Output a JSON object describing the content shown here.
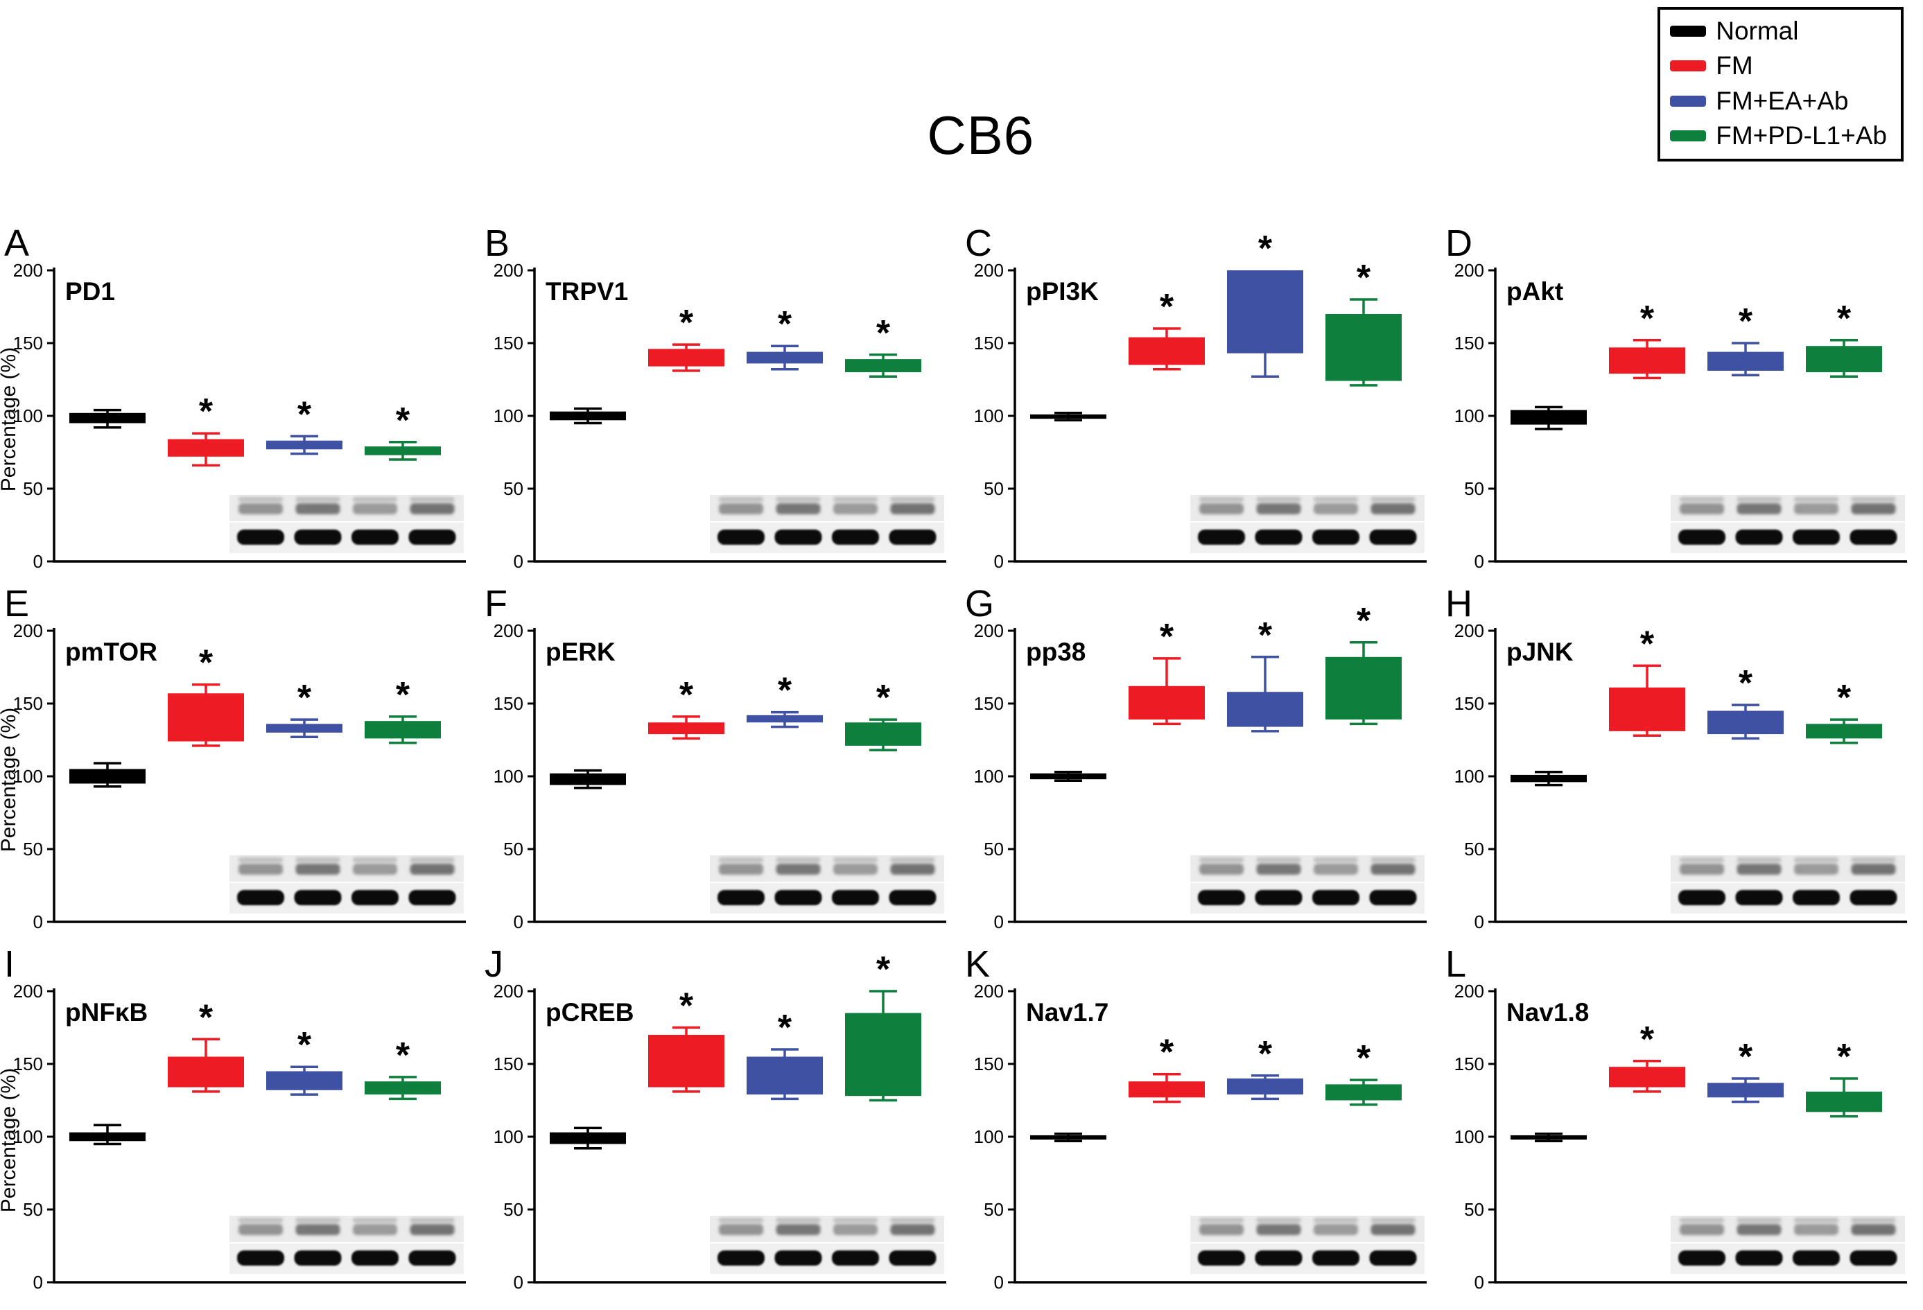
{
  "figure": {
    "title": "CB6"
  },
  "legend": {
    "items": [
      {
        "label": "Normal",
        "color": "#000000"
      },
      {
        "label": "FM",
        "color": "#ed1c24"
      },
      {
        "label": "FM+EA+Ab",
        "color": "#3f51a3"
      },
      {
        "label": "FM+PD-L1+Ab",
        "color": "#0e7f3c"
      }
    ]
  },
  "axis": {
    "ylabel": "Percentage (%)",
    "ylim": [
      0,
      200
    ],
    "yticks": [
      0,
      50,
      100,
      150,
      200
    ]
  },
  "blot": {
    "rows": 2,
    "lanes": 4
  },
  "chart_data": [
    {
      "panel": "A",
      "title": "PD1",
      "type": "bar",
      "show_ylabel": true,
      "blot": true,
      "groups": [
        "Normal",
        "FM",
        "FM+EA+Ab",
        "FM+PD-L1+Ab"
      ],
      "bars": [
        {
          "group": "Normal",
          "box": [
            95,
            102
          ],
          "whiskers": [
            92,
            104
          ],
          "sig": false
        },
        {
          "group": "FM",
          "box": [
            72,
            84
          ],
          "whiskers": [
            66,
            88
          ],
          "sig": true
        },
        {
          "group": "FM+EA+Ab",
          "box": [
            77,
            83
          ],
          "whiskers": [
            74,
            86
          ],
          "sig": true
        },
        {
          "group": "FM+PD-L1+Ab",
          "box": [
            73,
            79
          ],
          "whiskers": [
            70,
            82
          ],
          "sig": true
        }
      ]
    },
    {
      "panel": "B",
      "title": "TRPV1",
      "type": "bar",
      "show_ylabel": false,
      "blot": true,
      "groups": [
        "Normal",
        "FM",
        "FM+EA+Ab",
        "FM+PD-L1+Ab"
      ],
      "bars": [
        {
          "group": "Normal",
          "box": [
            97,
            103
          ],
          "whiskers": [
            95,
            105
          ],
          "sig": false
        },
        {
          "group": "FM",
          "box": [
            134,
            146
          ],
          "whiskers": [
            131,
            149
          ],
          "sig": true
        },
        {
          "group": "FM+EA+Ab",
          "box": [
            136,
            144
          ],
          "whiskers": [
            132,
            148
          ],
          "sig": true
        },
        {
          "group": "FM+PD-L1+Ab",
          "box": [
            130,
            139
          ],
          "whiskers": [
            127,
            142
          ],
          "sig": true
        }
      ]
    },
    {
      "panel": "C",
      "title": "pPI3K",
      "type": "bar",
      "show_ylabel": false,
      "blot": true,
      "groups": [
        "Normal",
        "FM",
        "FM+EA+Ab",
        "FM+PD-L1+Ab"
      ],
      "bars": [
        {
          "group": "Normal",
          "box": [
            98,
            101
          ],
          "whiskers": [
            97,
            102
          ],
          "sig": false
        },
        {
          "group": "FM",
          "box": [
            135,
            154
          ],
          "whiskers": [
            132,
            160
          ],
          "sig": true
        },
        {
          "group": "FM+EA+Ab",
          "box": [
            143,
            200
          ],
          "whiskers": [
            127,
            200
          ],
          "sig": true
        },
        {
          "group": "FM+PD-L1+Ab",
          "box": [
            124,
            170
          ],
          "whiskers": [
            121,
            180
          ],
          "sig": true
        }
      ]
    },
    {
      "panel": "D",
      "title": "pAkt",
      "type": "bar",
      "show_ylabel": false,
      "blot": true,
      "groups": [
        "Normal",
        "FM",
        "FM+EA+Ab",
        "FM+PD-L1+Ab"
      ],
      "bars": [
        {
          "group": "Normal",
          "box": [
            94,
            104
          ],
          "whiskers": [
            91,
            106
          ],
          "sig": false
        },
        {
          "group": "FM",
          "box": [
            129,
            147
          ],
          "whiskers": [
            126,
            152
          ],
          "sig": true
        },
        {
          "group": "FM+EA+Ab",
          "box": [
            131,
            144
          ],
          "whiskers": [
            128,
            150
          ],
          "sig": true
        },
        {
          "group": "FM+PD-L1+Ab",
          "box": [
            130,
            148
          ],
          "whiskers": [
            127,
            152
          ],
          "sig": true
        }
      ]
    },
    {
      "panel": "E",
      "title": "pmTOR",
      "type": "bar",
      "show_ylabel": true,
      "blot": true,
      "groups": [
        "Normal",
        "FM",
        "FM+EA+Ab",
        "FM+PD-L1+Ab"
      ],
      "bars": [
        {
          "group": "Normal",
          "box": [
            95,
            105
          ],
          "whiskers": [
            93,
            109
          ],
          "sig": false
        },
        {
          "group": "FM",
          "box": [
            124,
            157
          ],
          "whiskers": [
            121,
            163
          ],
          "sig": true
        },
        {
          "group": "FM+EA+Ab",
          "box": [
            130,
            136
          ],
          "whiskers": [
            127,
            139
          ],
          "sig": true
        },
        {
          "group": "FM+PD-L1+Ab",
          "box": [
            126,
            138
          ],
          "whiskers": [
            123,
            141
          ],
          "sig": true
        }
      ]
    },
    {
      "panel": "F",
      "title": "pERK",
      "type": "bar",
      "show_ylabel": false,
      "blot": true,
      "groups": [
        "Normal",
        "FM",
        "FM+EA+Ab",
        "FM+PD-L1+Ab"
      ],
      "bars": [
        {
          "group": "Normal",
          "box": [
            94,
            102
          ],
          "whiskers": [
            92,
            104
          ],
          "sig": false
        },
        {
          "group": "FM",
          "box": [
            129,
            137
          ],
          "whiskers": [
            126,
            141
          ],
          "sig": true
        },
        {
          "group": "FM+EA+Ab",
          "box": [
            137,
            142
          ],
          "whiskers": [
            134,
            144
          ],
          "sig": true
        },
        {
          "group": "FM+PD-L1+Ab",
          "box": [
            121,
            137
          ],
          "whiskers": [
            118,
            139
          ],
          "sig": true
        }
      ]
    },
    {
      "panel": "G",
      "title": "pp38",
      "type": "bar",
      "show_ylabel": false,
      "blot": true,
      "groups": [
        "Normal",
        "FM",
        "FM+EA+Ab",
        "FM+PD-L1+Ab"
      ],
      "bars": [
        {
          "group": "Normal",
          "box": [
            98,
            102
          ],
          "whiskers": [
            97,
            103
          ],
          "sig": false
        },
        {
          "group": "FM",
          "box": [
            139,
            162
          ],
          "whiskers": [
            136,
            181
          ],
          "sig": true
        },
        {
          "group": "FM+EA+Ab",
          "box": [
            134,
            158
          ],
          "whiskers": [
            131,
            182
          ],
          "sig": true
        },
        {
          "group": "FM+PD-L1+Ab",
          "box": [
            139,
            182
          ],
          "whiskers": [
            136,
            192
          ],
          "sig": true
        }
      ]
    },
    {
      "panel": "H",
      "title": "pJNK",
      "type": "bar",
      "show_ylabel": false,
      "blot": true,
      "groups": [
        "Normal",
        "FM",
        "FM+EA+Ab",
        "FM+PD-L1+Ab"
      ],
      "bars": [
        {
          "group": "Normal",
          "box": [
            96,
            101
          ],
          "whiskers": [
            94,
            103
          ],
          "sig": false
        },
        {
          "group": "FM",
          "box": [
            131,
            161
          ],
          "whiskers": [
            128,
            176
          ],
          "sig": true
        },
        {
          "group": "FM+EA+Ab",
          "box": [
            129,
            145
          ],
          "whiskers": [
            126,
            149
          ],
          "sig": true
        },
        {
          "group": "FM+PD-L1+Ab",
          "box": [
            126,
            136
          ],
          "whiskers": [
            123,
            139
          ],
          "sig": true
        }
      ]
    },
    {
      "panel": "I",
      "title": "pNFκB",
      "type": "bar",
      "show_ylabel": true,
      "blot": true,
      "groups": [
        "Normal",
        "FM",
        "FM+EA+Ab",
        "FM+PD-L1+Ab"
      ],
      "bars": [
        {
          "group": "Normal",
          "box": [
            97,
            103
          ],
          "whiskers": [
            95,
            108
          ],
          "sig": false
        },
        {
          "group": "FM",
          "box": [
            134,
            155
          ],
          "whiskers": [
            131,
            167
          ],
          "sig": true
        },
        {
          "group": "FM+EA+Ab",
          "box": [
            132,
            145
          ],
          "whiskers": [
            129,
            148
          ],
          "sig": true
        },
        {
          "group": "FM+PD-L1+Ab",
          "box": [
            129,
            138
          ],
          "whiskers": [
            126,
            141
          ],
          "sig": true
        }
      ]
    },
    {
      "panel": "J",
      "title": "pCREB",
      "type": "bar",
      "show_ylabel": false,
      "blot": true,
      "groups": [
        "Normal",
        "FM",
        "FM+EA+Ab",
        "FM+PD-L1+Ab"
      ],
      "bars": [
        {
          "group": "Normal",
          "box": [
            95,
            103
          ],
          "whiskers": [
            92,
            106
          ],
          "sig": false
        },
        {
          "group": "FM",
          "box": [
            134,
            170
          ],
          "whiskers": [
            131,
            175
          ],
          "sig": true
        },
        {
          "group": "FM+EA+Ab",
          "box": [
            129,
            155
          ],
          "whiskers": [
            126,
            160
          ],
          "sig": true
        },
        {
          "group": "FM+PD-L1+Ab",
          "box": [
            128,
            185
          ],
          "whiskers": [
            125,
            200
          ],
          "sig": true
        }
      ]
    },
    {
      "panel": "K",
      "title": "Nav1.7",
      "type": "bar",
      "show_ylabel": false,
      "blot": true,
      "groups": [
        "Normal",
        "FM",
        "FM+EA+Ab",
        "FM+PD-L1+Ab"
      ],
      "bars": [
        {
          "group": "Normal",
          "box": [
            98,
            101
          ],
          "whiskers": [
            97,
            102
          ],
          "sig": false
        },
        {
          "group": "FM",
          "box": [
            127,
            138
          ],
          "whiskers": [
            124,
            143
          ],
          "sig": true
        },
        {
          "group": "FM+EA+Ab",
          "box": [
            129,
            140
          ],
          "whiskers": [
            126,
            142
          ],
          "sig": true
        },
        {
          "group": "FM+PD-L1+Ab",
          "box": [
            125,
            136
          ],
          "whiskers": [
            122,
            139
          ],
          "sig": true
        }
      ]
    },
    {
      "panel": "L",
      "title": "Nav1.8",
      "type": "bar",
      "show_ylabel": false,
      "blot": true,
      "groups": [
        "Normal",
        "FM",
        "FM+EA+Ab",
        "FM+PD-L1+Ab"
      ],
      "bars": [
        {
          "group": "Normal",
          "box": [
            98,
            101
          ],
          "whiskers": [
            97,
            102
          ],
          "sig": false
        },
        {
          "group": "FM",
          "box": [
            134,
            148
          ],
          "whiskers": [
            131,
            152
          ],
          "sig": true
        },
        {
          "group": "FM+EA+Ab",
          "box": [
            127,
            137
          ],
          "whiskers": [
            124,
            140
          ],
          "sig": true
        },
        {
          "group": "FM+PD-L1+Ab",
          "box": [
            117,
            131
          ],
          "whiskers": [
            114,
            140
          ],
          "sig": true
        }
      ]
    }
  ]
}
